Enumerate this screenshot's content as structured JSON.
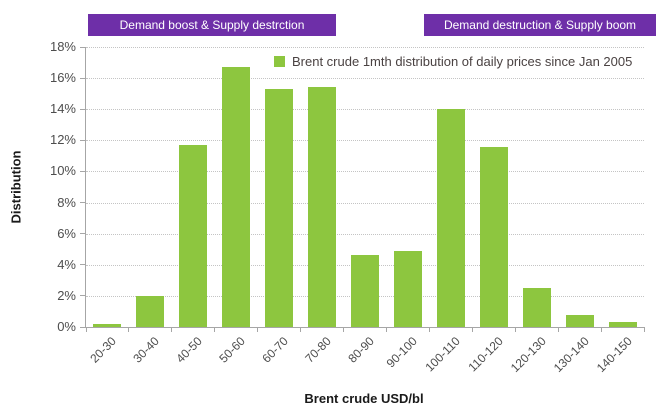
{
  "banners": {
    "left": "Demand boost & Supply destrction",
    "right": "Demand destruction & Supply boom"
  },
  "colors": {
    "bar": "#8dc63f",
    "banner_bg": "#6e2fa8",
    "banner_text": "#ffffff",
    "grid": "#c4c4c4",
    "axis": "#a6a6a6"
  },
  "chart_data": {
    "type": "bar",
    "categories": [
      "20-30",
      "30-40",
      "40-50",
      "50-60",
      "60-70",
      "70-80",
      "80-90",
      "90-100",
      "100-110",
      "110-120",
      "120-130",
      "130-140",
      "140-150"
    ],
    "values": [
      0.2,
      2.0,
      11.7,
      16.7,
      15.3,
      15.4,
      4.6,
      4.9,
      14.0,
      11.6,
      2.5,
      0.8,
      0.3
    ],
    "title": "",
    "xlabel": "Brent crude USD/bl",
    "ylabel": "Distribution",
    "ylim": [
      0,
      18
    ],
    "ytick_step": 2,
    "ytick_suffix": "%",
    "grid": true,
    "legend": [
      "Brent crude 1mth distribution of daily prices since Jan 2005"
    ],
    "legend_position": "top-right-inside"
  }
}
